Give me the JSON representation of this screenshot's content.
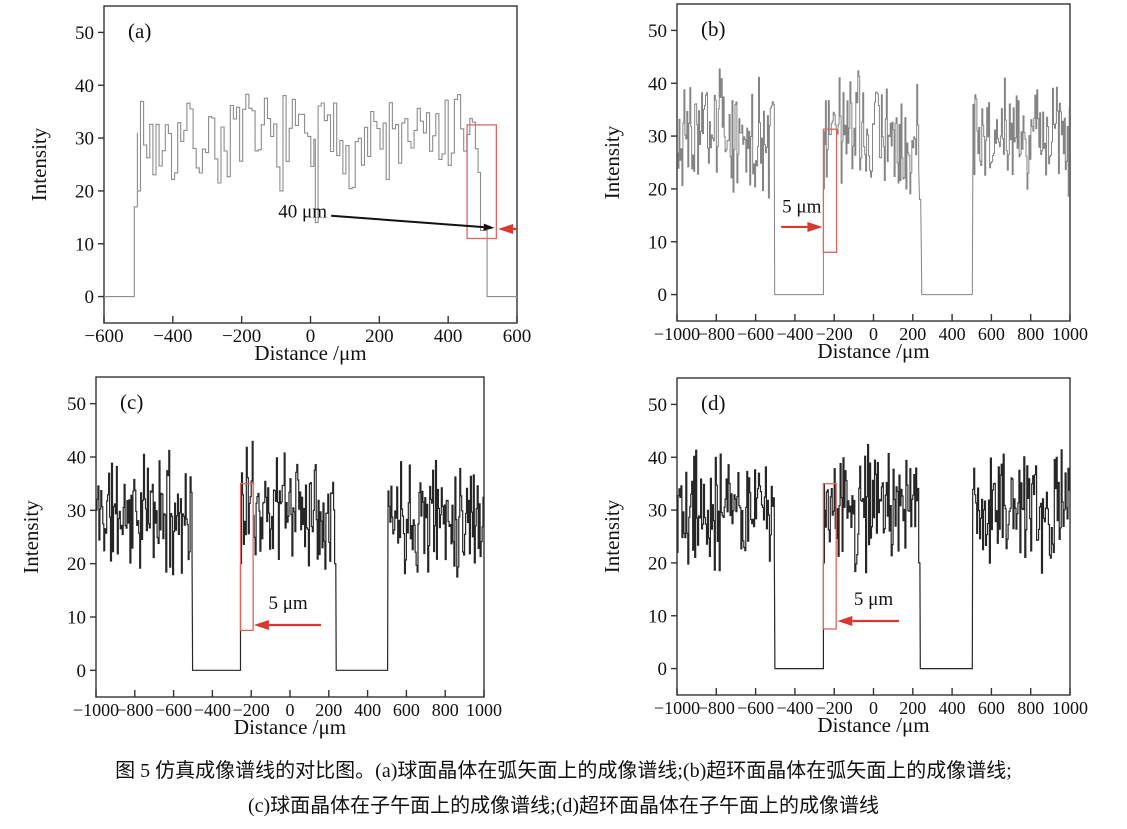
{
  "figure": {
    "caption_line1": "图 5  仿真成像谱线的对比图。(a)球面晶体在弧矢面上的成像谱线;(b)超环面晶体在弧矢面上的成像谱线;",
    "caption_line2": "(c)球面晶体在子午面上的成像谱线;(d)超环面晶体在子午面上的成像谱线"
  },
  "colors": {
    "axis": "#333333",
    "arrow_red": "#d93831",
    "box_red": "#e2655f",
    "line_gray": "#8c8c8c",
    "line_gray_b": "#848484",
    "line_dark": "#262626",
    "text": "#111111"
  },
  "chart_data": [
    {
      "id": "a",
      "type": "line",
      "label": "(a)",
      "xlabel": "Distance /μm",
      "ylabel": "Intensity",
      "xlim": [
        -600,
        600
      ],
      "ylim": [
        -5,
        55
      ],
      "xticks": [
        -600,
        -400,
        -200,
        0,
        200,
        400,
        600
      ],
      "yticks": [
        0,
        10,
        20,
        30,
        40,
        50
      ],
      "grid": false,
      "legend": null,
      "line_color": "#8c8c8c",
      "line_width": 1.1,
      "seed": 7,
      "noise": {
        "step": 9,
        "spread": 11,
        "clamp": [
          20,
          41
        ]
      },
      "segments": [
        {
          "type": "flat",
          "x0": -600,
          "x1": -512,
          "y": 0
        },
        {
          "type": "path",
          "points": [
            [
              -512,
              0
            ],
            [
              -512,
              17
            ],
            [
              -503,
              17
            ],
            [
              -503,
              31
            ]
          ]
        },
        {
          "type": "noise",
          "x0": -503,
          "x1": 14,
          "mean": 29.5
        },
        {
          "type": "path",
          "points": [
            [
              14,
              14
            ],
            [
              22,
              14
            ]
          ]
        },
        {
          "type": "noise",
          "x0": 22,
          "x1": 470,
          "mean": 29.5
        },
        {
          "type": "path",
          "points": [
            [
              470,
              33
            ],
            [
              479,
              33
            ],
            [
              479,
              28
            ],
            [
              487,
              28
            ],
            [
              487,
              23.5
            ],
            [
              494,
              23.5
            ],
            [
              494,
              12.5
            ],
            [
              513,
              12.5
            ],
            [
              513,
              0
            ]
          ]
        },
        {
          "type": "flat",
          "x0": 513,
          "x1": 600,
          "y": 0
        }
      ],
      "annotation": {
        "text": "40 μm",
        "text_pos": [
          48,
          15.0
        ],
        "text_anchor": "end",
        "box": {
          "x0": 455,
          "x1": 540,
          "y0": 11,
          "y1": 32.5
        },
        "red_arrow": {
          "from": [
            600,
            12.8
          ],
          "to": [
            545,
            12.8
          ]
        },
        "black_arrow": {
          "from": [
            60,
            15.3
          ],
          "to": [
            535,
            13.0
          ]
        }
      }
    },
    {
      "id": "b",
      "type": "line",
      "label": "(b)",
      "xlabel": "Distance /μm",
      "ylabel": "Intensity",
      "xlim": [
        -1000,
        1000
      ],
      "ylim": [
        -5,
        55
      ],
      "xticks": [
        -1000,
        -800,
        -600,
        -400,
        -200,
        0,
        200,
        400,
        600,
        800,
        1000
      ],
      "yticks": [
        0,
        10,
        20,
        30,
        40,
        50
      ],
      "grid": false,
      "legend": null,
      "line_color": "#848484",
      "line_width": 1.0,
      "seed": 3,
      "noise": {
        "step": 5,
        "spread": 13,
        "clamp": [
          16,
          47
        ]
      },
      "segments": [
        {
          "type": "noise",
          "x0": -1000,
          "x1": -505,
          "mean": 30
        },
        {
          "type": "path",
          "points": [
            [
              -505,
              24
            ],
            [
              -503,
              0
            ]
          ]
        },
        {
          "type": "flat",
          "x0": -503,
          "x1": -255,
          "y": 0
        },
        {
          "type": "path",
          "points": [
            [
              -255,
              0
            ],
            [
              -255,
              20
            ],
            [
              -250,
              20
            ],
            [
              -250,
              31
            ]
          ]
        },
        {
          "type": "noise",
          "x0": -250,
          "x1": 230,
          "mean": 30.5
        },
        {
          "type": "path",
          "points": [
            [
              230,
              24
            ],
            [
              234,
              18
            ],
            [
              240,
              18
            ],
            [
              246,
              0
            ]
          ]
        },
        {
          "type": "flat",
          "x0": 246,
          "x1": 503,
          "y": 0
        },
        {
          "type": "path",
          "points": [
            [
              503,
              0
            ],
            [
              506,
              26
            ]
          ]
        },
        {
          "type": "noise",
          "x0": 506,
          "x1": 1000,
          "mean": 30
        }
      ],
      "annotation": {
        "text": "5 μm",
        "text_pos": [
          -365,
          15.5
        ],
        "text_anchor": "middle",
        "box": {
          "x0": -255,
          "x1": -188,
          "y0": 8,
          "y1": 31.3
        },
        "red_arrow": {
          "from": [
            -470,
            12.8
          ],
          "to": [
            -260,
            12.8
          ]
        }
      }
    },
    {
      "id": "c",
      "type": "line",
      "label": "(c)",
      "xlabel": "Distance /μm",
      "ylabel": "Intensity",
      "xlim": [
        -1000,
        1000
      ],
      "ylim": [
        -5,
        55
      ],
      "xticks": [
        -1000,
        -800,
        -600,
        -400,
        -200,
        0,
        200,
        400,
        600,
        800,
        1000
      ],
      "yticks": [
        0,
        10,
        20,
        30,
        40,
        50
      ],
      "grid": false,
      "legend": null,
      "line_color": "#262626",
      "line_width": 1.2,
      "seed": 11,
      "noise": {
        "step": 5,
        "spread": 13,
        "clamp": [
          16,
          47
        ]
      },
      "segments": [
        {
          "type": "noise",
          "x0": -1000,
          "x1": -505,
          "mean": 29.5
        },
        {
          "type": "path",
          "points": [
            [
              -505,
              23
            ],
            [
              -502,
              0
            ]
          ]
        },
        {
          "type": "flat",
          "x0": -502,
          "x1": -255,
          "y": 0
        },
        {
          "type": "path",
          "points": [
            [
              -255,
              0
            ],
            [
              -255,
              20
            ],
            [
              -250,
              20
            ],
            [
              -250,
              34.5
            ]
          ]
        },
        {
          "type": "noise",
          "x0": -250,
          "x1": 230,
          "mean": 31
        },
        {
          "type": "path",
          "points": [
            [
              230,
              20
            ],
            [
              236,
              20
            ],
            [
              238,
              0
            ]
          ]
        },
        {
          "type": "flat",
          "x0": 238,
          "x1": 503,
          "y": 0
        },
        {
          "type": "path",
          "points": [
            [
              503,
              0
            ],
            [
              505,
              30
            ]
          ]
        },
        {
          "type": "noise",
          "x0": 505,
          "x1": 1000,
          "mean": 29.5
        }
      ],
      "annotation": {
        "text": "5 μm",
        "text_pos": [
          -10,
          11.5
        ],
        "text_anchor": "middle",
        "box": {
          "x0": -255,
          "x1": -190,
          "y0": 7.5,
          "y1": 35
        },
        "red_arrow": {
          "from": [
            160,
            8.5
          ],
          "to": [
            -186,
            8.5
          ]
        }
      }
    },
    {
      "id": "d",
      "type": "line",
      "label": "(d)",
      "xlabel": "Distance /μm",
      "ylabel": "Intensity",
      "xlim": [
        -1000,
        1000
      ],
      "ylim": [
        -5,
        55
      ],
      "xticks": [
        -1000,
        -800,
        -600,
        -400,
        -200,
        0,
        200,
        400,
        600,
        800,
        1000
      ],
      "yticks": [
        0,
        10,
        20,
        30,
        40,
        50
      ],
      "grid": false,
      "legend": null,
      "line_color": "#262626",
      "line_width": 1.2,
      "seed": 19,
      "noise": {
        "step": 5,
        "spread": 13,
        "clamp": [
          16,
          47
        ]
      },
      "segments": [
        {
          "type": "noise",
          "x0": -1000,
          "x1": -505,
          "mean": 30
        },
        {
          "type": "path",
          "points": [
            [
              -505,
              23
            ],
            [
              -502,
              0
            ]
          ]
        },
        {
          "type": "flat",
          "x0": -502,
          "x1": -255,
          "y": 0
        },
        {
          "type": "path",
          "points": [
            [
              -255,
              0
            ],
            [
              -255,
              20
            ],
            [
              -250,
              20
            ],
            [
              -250,
              35
            ]
          ]
        },
        {
          "type": "noise",
          "x0": -250,
          "x1": 230,
          "mean": 30.5
        },
        {
          "type": "path",
          "points": [
            [
              230,
              20
            ],
            [
              236,
              20
            ],
            [
              238,
              0
            ]
          ]
        },
        {
          "type": "flat",
          "x0": 238,
          "x1": 503,
          "y": 0
        },
        {
          "type": "path",
          "points": [
            [
              503,
              0
            ],
            [
              505,
              30
            ]
          ]
        },
        {
          "type": "noise",
          "x0": 505,
          "x1": 1000,
          "mean": 30
        }
      ],
      "annotation": {
        "text": "5 μm",
        "text_pos": [
          0,
          12
        ],
        "text_anchor": "middle",
        "box": {
          "x0": -255,
          "x1": -190,
          "y0": 7.5,
          "y1": 35
        },
        "red_arrow": {
          "from": [
            130,
            9
          ],
          "to": [
            -184,
            9
          ]
        }
      }
    }
  ]
}
